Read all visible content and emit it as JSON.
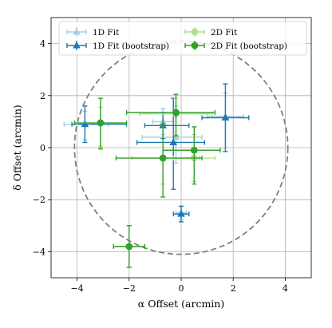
{
  "chart_data": {
    "type": "scatter",
    "xlabel": "α Offset (arcmin)",
    "ylabel": "δ Offset (arcmin)",
    "xlim": [
      -5,
      5
    ],
    "ylim": [
      -5,
      5
    ],
    "xticks": [
      -4,
      -2,
      0,
      2,
      4
    ],
    "yticks": [
      -4,
      -2,
      0,
      2,
      4
    ],
    "xtick_labels": [
      "−4",
      "−2",
      "0",
      "2",
      "4"
    ],
    "ytick_labels": [
      "−4",
      "−2",
      "0",
      "2",
      "4"
    ],
    "grid": true,
    "legend_position": "top",
    "legend_columns": 2,
    "circle": {
      "center": [
        0,
        0
      ],
      "radius": 4.1,
      "style": "dashed",
      "color": "#808080"
    },
    "series": [
      {
        "name": "1D Fit",
        "marker": "triangle",
        "color": "#a6cee3",
        "points": [
          {
            "x": -3.7,
            "y": 0.9,
            "xerr": [
              0.8,
              0.9
            ],
            "yerr": [
              0.6,
              0.5
            ]
          },
          {
            "x": -0.2,
            "y": 0.4,
            "xerr": [
              1.3,
              1.0
            ],
            "yerr": [
              1.0,
              1.2
            ]
          },
          {
            "x": -0.7,
            "y": 1.0,
            "xerr": [
              0.4,
              0.4
            ],
            "yerr": [
              0.5,
              0.5
            ]
          },
          {
            "x": 1.7,
            "y": 1.2,
            "xerr": [
              0.7,
              0.7
            ],
            "yerr": [
              1.2,
              0.9
            ]
          },
          {
            "x": 0.0,
            "y": -2.5,
            "xerr": [
              0.2,
              0.2
            ],
            "yerr": [
              0.25,
              0.25
            ]
          }
        ]
      },
      {
        "name": "1D Fit (bootstrap)",
        "marker": "triangle",
        "color": "#1f78b4",
        "points": [
          {
            "x": -3.7,
            "y": 0.9,
            "xerr": [
              0.5,
              1.6
            ],
            "yerr": [
              0.7,
              0.7
            ]
          },
          {
            "x": -0.7,
            "y": 0.85,
            "xerr": [
              0.7,
              1.0
            ],
            "yerr": [
              0.5,
              0.5
            ]
          },
          {
            "x": -0.3,
            "y": 0.2,
            "xerr": [
              1.4,
              1.2
            ],
            "yerr": [
              1.8,
              1.7
            ]
          },
          {
            "x": 1.7,
            "y": 1.15,
            "xerr": [
              0.9,
              0.9
            ],
            "yerr": [
              1.3,
              1.3
            ]
          },
          {
            "x": 0.0,
            "y": -2.55,
            "xerr": [
              0.3,
              0.3
            ],
            "yerr": [
              0.3,
              0.3
            ]
          }
        ]
      },
      {
        "name": "2D Fit",
        "marker": "circle",
        "color": "#b2df8a",
        "points": [
          {
            "x": -3.1,
            "y": 0.95,
            "xerr": [
              0.9,
              1.0
            ],
            "yerr": [
              0.9,
              0.6
            ]
          },
          {
            "x": -0.2,
            "y": 1.3,
            "xerr": [
              1.4,
              1.4
            ],
            "yerr": [
              0.8,
              0.6
            ]
          },
          {
            "x": -0.7,
            "y": -0.4,
            "xerr": [
              1.2,
              1.4
            ],
            "yerr": [
              1.0,
              1.3
            ]
          },
          {
            "x": 0.5,
            "y": -0.4,
            "xerr": [
              0.8,
              0.8
            ],
            "yerr": [
              0.9,
              0.9
            ]
          },
          {
            "x": -2.0,
            "y": -3.8,
            "xerr": [
              0.6,
              0.6
            ],
            "yerr": [
              0.8,
              0.8
            ]
          }
        ]
      },
      {
        "name": "2D Fit (bootstrap)",
        "marker": "circle",
        "color": "#33a02c",
        "points": [
          {
            "x": -3.1,
            "y": 0.95,
            "xerr": [
              1.0,
              1.0
            ],
            "yerr": [
              1.0,
              0.95
            ]
          },
          {
            "x": -0.2,
            "y": 1.35,
            "xerr": [
              1.9,
              1.5
            ],
            "yerr": [
              0.9,
              0.7
            ]
          },
          {
            "x": -0.7,
            "y": -0.4,
            "xerr": [
              1.8,
              1.5
            ],
            "yerr": [
              1.5,
              1.3
            ]
          },
          {
            "x": 0.5,
            "y": -0.1,
            "xerr": [
              1.2,
              1.0
            ],
            "yerr": [
              1.3,
              0.9
            ]
          },
          {
            "x": -2.0,
            "y": -3.8,
            "xerr": [
              0.6,
              0.6
            ],
            "yerr": [
              0.8,
              0.8
            ]
          }
        ]
      }
    ]
  }
}
